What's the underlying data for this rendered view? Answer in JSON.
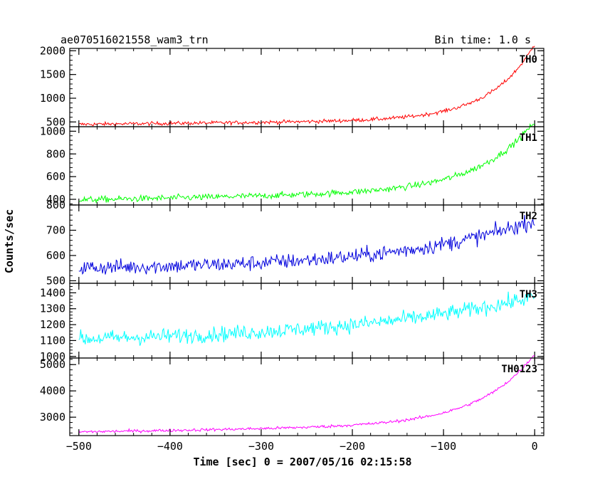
{
  "header": {
    "title": "ae070516021558_wam3_trn",
    "bin_time": "Bin time: 1.0 s"
  },
  "chart_data": {
    "type": "line",
    "title": "ae070516021558_wam3_trn",
    "subtitle": "Bin time: 1.0 s",
    "xlabel": "Time [sec] 0 = 2007/05/16 02:15:58",
    "ylabel": "Counts/sec",
    "xlim": [
      -510,
      10
    ],
    "xticks": [
      -500,
      -400,
      -300,
      -200,
      -100,
      0
    ],
    "x_range": [
      -500,
      0
    ],
    "x_step": 1,
    "grid": false,
    "panels": [
      {
        "label": "TH0",
        "color": "#ff0000",
        "ylim": [
          400,
          2050
        ],
        "yticks": [
          500,
          1000,
          1500,
          2000
        ],
        "baseline": 450,
        "amplitude": 1590,
        "tau": 48,
        "slope_per_s": 0.2,
        "noise": 28,
        "trend_points": [
          [
            -500,
            450
          ],
          [
            -300,
            520
          ],
          [
            -200,
            575
          ],
          [
            -100,
            800
          ],
          [
            -50,
            1170
          ],
          [
            0,
            2040
          ]
        ]
      },
      {
        "label": "TH1",
        "color": "#00ff00",
        "ylim": [
          350,
          1040
        ],
        "yticks": [
          400,
          600,
          800,
          1000
        ],
        "baseline": 395,
        "amplitude": 615,
        "tau": 60,
        "slope_per_s": 0.16,
        "noise": 20,
        "trend_points": [
          [
            -500,
            395
          ],
          [
            -300,
            430
          ],
          [
            -200,
            465
          ],
          [
            -100,
            560
          ],
          [
            -50,
            690
          ],
          [
            0,
            1010
          ]
        ]
      },
      {
        "label": "TH2",
        "color": "#0000dd",
        "ylim": [
          490,
          800
        ],
        "yticks": [
          500,
          600,
          700,
          800
        ],
        "baseline": 545,
        "amplitude": 195,
        "tau": 150,
        "slope_per_s": 0,
        "noise": 22,
        "trend_points": [
          [
            -500,
            545
          ],
          [
            -300,
            570
          ],
          [
            -200,
            600
          ],
          [
            -100,
            650
          ],
          [
            0,
            740
          ]
        ]
      },
      {
        "label": "TH3",
        "color": "#00ffff",
        "ylim": [
          990,
          1460
        ],
        "yticks": [
          1000,
          1100,
          1200,
          1300,
          1400
        ],
        "baseline": 1080,
        "amplitude": 295,
        "tau": 220,
        "slope_per_s": 0,
        "noise": 35,
        "trend_points": [
          [
            -500,
            1080
          ],
          [
            -300,
            1130
          ],
          [
            -200,
            1180
          ],
          [
            -100,
            1255
          ],
          [
            0,
            1375
          ]
        ]
      },
      {
        "label": "TH0123",
        "color": "#ff00ff",
        "ylim": [
          2300,
          5250
        ],
        "yticks": [
          3000,
          4000,
          5000
        ],
        "baseline": 2440,
        "amplitude": 2700,
        "tau": 60,
        "slope_per_s": 0.55,
        "noise": 40,
        "trend_points": [
          [
            -500,
            2450
          ],
          [
            -300,
            2600
          ],
          [
            -200,
            2780
          ],
          [
            -100,
            3200
          ],
          [
            -50,
            3700
          ],
          [
            0,
            5150
          ]
        ]
      }
    ]
  }
}
